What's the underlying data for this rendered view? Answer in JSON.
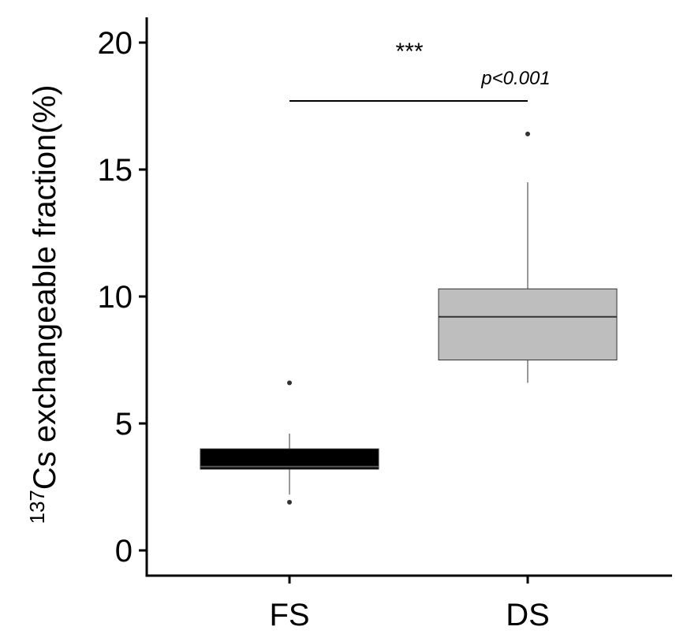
{
  "chart_data": {
    "type": "box",
    "title": "",
    "xlabel": "",
    "ylabel_super": "137",
    "ylabel": "Cs exchangeable fraction(%)",
    "ylim": [
      0,
      20
    ],
    "yticks": [
      0,
      5,
      10,
      15,
      20
    ],
    "categories": [
      "FS",
      "DS"
    ],
    "boxes": [
      {
        "category": "FS",
        "whisker_low": 2.2,
        "q1": 3.2,
        "median": 3.3,
        "q3": 4.0,
        "whisker_high": 4.6,
        "outliers": [
          6.6,
          1.9
        ],
        "fill": "#000000"
      },
      {
        "category": "DS",
        "whisker_low": 6.6,
        "q1": 7.5,
        "median": 9.2,
        "q3": 10.3,
        "whisker_high": 14.5,
        "outliers": [
          16.4
        ],
        "fill": "#bebebe"
      }
    ],
    "annotation": {
      "stars": "***",
      "p_text": "p<0.001",
      "bracket_y": 17.7,
      "from": "FS",
      "to": "DS"
    },
    "grid": false,
    "legend": "none"
  }
}
